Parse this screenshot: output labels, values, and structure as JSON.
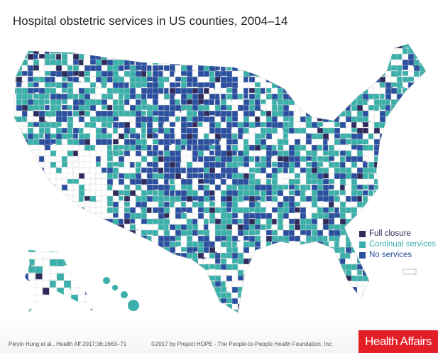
{
  "title": "Hospital obstetric services in US counties, 2004–14",
  "legend": [
    {
      "label": "Full closure",
      "color": "#2e2b5c"
    },
    {
      "label": "Continual services",
      "color": "#3bb0aa"
    },
    {
      "label": "No services",
      "color": "#2a4f9f"
    }
  ],
  "no_data_color": "#ffffff",
  "footer": {
    "citation": "Peiyin Hung et al., Health Aff 2017;36:1663–71",
    "copyright": "©2017 by Project HOPE - The People-to-People Health Foundation, Inc.",
    "brand": "Health Affairs"
  }
}
